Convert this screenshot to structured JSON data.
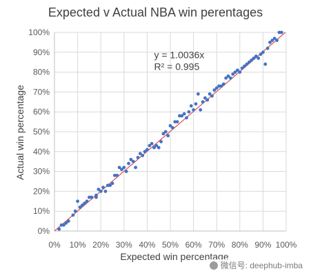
{
  "chart_data": {
    "type": "scatter",
    "title": "Expected  v Actual NBA win perentages",
    "xlabel": "Expected win percentage",
    "ylabel": "Actual win percentage",
    "xlim": [
      0,
      100
    ],
    "ylim": [
      0,
      100
    ],
    "x_ticks": [
      "0%",
      "10%",
      "20%",
      "30%",
      "40%",
      "50%",
      "60%",
      "70%",
      "80%",
      "90%",
      "100%"
    ],
    "y_ticks": [
      "0%",
      "10%",
      "20%",
      "30%",
      "40%",
      "50%",
      "60%",
      "70%",
      "80%",
      "90%",
      "100%"
    ],
    "grid": true,
    "annotation": {
      "equation": "y = 1.0036x",
      "r2": "R² = 0.995"
    },
    "series": [
      {
        "x": [
          2,
          2,
          3,
          4,
          5,
          6,
          6,
          8,
          9,
          10,
          11,
          12,
          13,
          14,
          15,
          16,
          18,
          18,
          19,
          20,
          21,
          22,
          23,
          24,
          25,
          26,
          27,
          28,
          29,
          30,
          31,
          32,
          33,
          34,
          35,
          36,
          37,
          38,
          39,
          40,
          41,
          42,
          43,
          44,
          45,
          46,
          47,
          48,
          49,
          50,
          51,
          52,
          53,
          54,
          55,
          56,
          57,
          58,
          59,
          60,
          61,
          62,
          63,
          64,
          65,
          66,
          67,
          68,
          69,
          70,
          71,
          72,
          73,
          74,
          75,
          76,
          77,
          78,
          79,
          80,
          81,
          82,
          83,
          84,
          85,
          86,
          87,
          88,
          89,
          90,
          91,
          92,
          93,
          94,
          95,
          96,
          97,
          98
        ],
        "y": [
          1,
          1,
          3,
          3,
          4,
          5,
          5,
          8,
          10,
          15,
          12,
          13,
          14,
          15,
          17,
          17,
          17,
          18,
          21,
          20,
          22,
          20,
          23,
          23,
          24,
          28,
          28,
          32,
          31,
          32,
          30,
          34,
          36,
          35,
          32,
          37,
          39,
          38,
          40,
          41,
          43,
          44,
          42,
          43,
          42,
          45,
          49,
          50,
          48,
          53,
          52,
          55,
          55,
          58,
          58,
          59,
          57,
          60,
          63,
          61,
          64,
          69,
          61,
          65,
          67,
          66,
          69,
          68,
          71,
          72,
          73,
          73,
          74,
          77,
          78,
          77,
          79,
          80,
          81,
          80,
          82,
          83,
          84,
          85,
          86,
          87,
          88,
          87,
          89,
          90,
          84,
          92,
          95,
          96,
          97,
          96,
          100,
          100
        ],
        "color": "#4472C4"
      }
    ],
    "trendline": {
      "slope": 1.0036,
      "color": "#E05050"
    }
  },
  "watermark": {
    "text": "微信号: deephub-imba"
  }
}
